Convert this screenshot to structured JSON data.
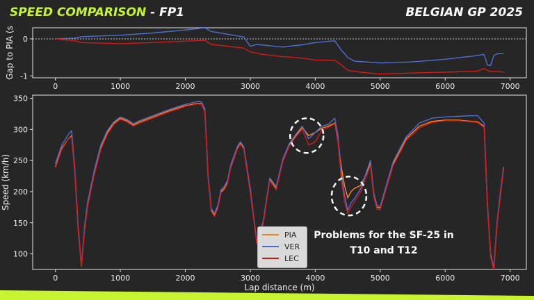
{
  "header": {
    "title_accent": "SPEED COMPARISON",
    "title_rest": " - FP1",
    "event": "BELGIAN GP 2025"
  },
  "annotation": {
    "line1": "Problems for the SF-25 in",
    "line2": "T10 and T12"
  },
  "colors": {
    "background": "#262626",
    "accent": "#c6f432",
    "PIA": "#ff8a1c",
    "VER": "#4f6fd1",
    "LEC": "#d41a1a"
  },
  "chart_data": [
    {
      "type": "line",
      "ylabel": "Gap to PIA (s",
      "xlim": [
        -350,
        7250
      ],
      "ylim": [
        -1.05,
        0.3
      ],
      "xticks": [
        0,
        1000,
        2000,
        3000,
        4000,
        5000,
        6000,
        7000
      ],
      "yticks": [
        0,
        -1
      ],
      "reference_line": 0,
      "series": [
        {
          "name": "VER",
          "x": [
            0,
            300,
            400,
            1000,
            1500,
            2000,
            2300,
            2400,
            2900,
            3000,
            3100,
            3500,
            3800,
            4000,
            4300,
            4400,
            4500,
            4600,
            5000,
            5500,
            6000,
            6400,
            6600,
            6650,
            6700,
            6750,
            6800,
            6900
          ],
          "values": [
            0.0,
            0.02,
            0.06,
            0.1,
            0.16,
            0.24,
            0.3,
            0.2,
            0.05,
            -0.2,
            -0.15,
            -0.22,
            -0.16,
            -0.1,
            -0.05,
            -0.3,
            -0.5,
            -0.6,
            -0.65,
            -0.62,
            -0.55,
            -0.47,
            -0.42,
            -0.7,
            -0.72,
            -0.45,
            -0.4,
            -0.4
          ]
        },
        {
          "name": "LEC",
          "x": [
            0,
            300,
            400,
            1000,
            1500,
            2000,
            2300,
            2400,
            2900,
            3000,
            3200,
            3500,
            3800,
            4000,
            4300,
            4400,
            4500,
            4700,
            5000,
            5500,
            6000,
            6500,
            6600,
            6650,
            6700,
            6800,
            6900
          ],
          "values": [
            0.0,
            -0.05,
            -0.1,
            -0.13,
            -0.1,
            -0.06,
            -0.04,
            -0.15,
            -0.25,
            -0.35,
            -0.42,
            -0.48,
            -0.52,
            -0.57,
            -0.58,
            -0.7,
            -0.85,
            -0.9,
            -0.95,
            -0.92,
            -0.9,
            -0.87,
            -0.8,
            -0.85,
            -0.88,
            -0.88,
            -0.9
          ]
        }
      ]
    },
    {
      "type": "line",
      "xlabel": "Lap distance (m)",
      "ylabel": "Speed (km/h)",
      "xlim": [
        -350,
        7250
      ],
      "ylim": [
        75,
        355
      ],
      "xticks": [
        0,
        1000,
        2000,
        3000,
        4000,
        5000,
        6000,
        7000
      ],
      "yticks": [
        100,
        150,
        200,
        250,
        300,
        350
      ],
      "legend_position": "center",
      "series": [
        {
          "name": "PIA",
          "x": [
            0,
            100,
            200,
            250,
            300,
            350,
            400,
            450,
            500,
            600,
            700,
            800,
            900,
            1000,
            1100,
            1200,
            1300,
            1500,
            1700,
            1900,
            2000,
            2100,
            2200,
            2250,
            2300,
            2350,
            2400,
            2450,
            2500,
            2550,
            2600,
            2650,
            2700,
            2800,
            2850,
            2900,
            3000,
            3050,
            3100,
            3200,
            3300,
            3400,
            3500,
            3600,
            3700,
            3800,
            3900,
            4000,
            4100,
            4200,
            4300,
            4350,
            4400,
            4450,
            4500,
            4550,
            4600,
            4700,
            4800,
            4850,
            4900,
            4950,
            5000,
            5100,
            5200,
            5400,
            5600,
            5800,
            6000,
            6200,
            6400,
            6500,
            6600,
            6650,
            6700,
            6750,
            6800,
            6850,
            6900
          ],
          "values": [
            240,
            270,
            285,
            290,
            230,
            140,
            80,
            140,
            180,
            230,
            270,
            295,
            310,
            318,
            314,
            307,
            312,
            320,
            328,
            335,
            338,
            340,
            342,
            341,
            330,
            225,
            170,
            162,
            175,
            200,
            205,
            215,
            240,
            270,
            278,
            270,
            200,
            160,
            118,
            150,
            220,
            205,
            250,
            275,
            290,
            303,
            290,
            295,
            302,
            305,
            310,
            280,
            240,
            210,
            190,
            200,
            205,
            210,
            232,
            245,
            195,
            175,
            174,
            210,
            245,
            285,
            305,
            313,
            315,
            315,
            313,
            312,
            305,
            180,
            100,
            75,
            150,
            195,
            238
          ]
        },
        {
          "name": "VER",
          "x": [
            0,
            100,
            200,
            250,
            300,
            350,
            400,
            450,
            500,
            600,
            700,
            800,
            900,
            1000,
            1100,
            1200,
            1300,
            1500,
            1700,
            1900,
            2000,
            2100,
            2200,
            2250,
            2300,
            2350,
            2400,
            2450,
            2500,
            2550,
            2600,
            2650,
            2700,
            2800,
            2850,
            2900,
            3000,
            3050,
            3100,
            3200,
            3300,
            3400,
            3500,
            3600,
            3700,
            3800,
            3900,
            4000,
            4100,
            4200,
            4300,
            4350,
            4400,
            4450,
            4500,
            4550,
            4600,
            4700,
            4800,
            4850,
            4900,
            4950,
            5000,
            5100,
            5200,
            5400,
            5600,
            5800,
            6000,
            6200,
            6400,
            6500,
            6600,
            6650,
            6700,
            6750,
            6800,
            6850,
            6900
          ],
          "values": [
            245,
            275,
            292,
            298,
            235,
            145,
            82,
            145,
            185,
            235,
            275,
            298,
            312,
            320,
            316,
            309,
            314,
            322,
            330,
            337,
            340,
            343,
            345,
            344,
            333,
            228,
            173,
            165,
            178,
            203,
            208,
            218,
            243,
            272,
            280,
            272,
            205,
            162,
            120,
            152,
            222,
            208,
            252,
            277,
            292,
            305,
            285,
            295,
            305,
            308,
            318,
            290,
            230,
            195,
            170,
            182,
            188,
            205,
            235,
            250,
            198,
            178,
            176,
            212,
            248,
            288,
            310,
            318,
            320,
            321,
            322,
            322,
            310,
            185,
            95,
            80,
            152,
            198,
            240
          ]
        },
        {
          "name": "LEC",
          "x": [
            0,
            100,
            200,
            250,
            300,
            350,
            400,
            450,
            500,
            600,
            700,
            800,
            900,
            1000,
            1100,
            1200,
            1300,
            1500,
            1700,
            1900,
            2000,
            2100,
            2200,
            2250,
            2300,
            2350,
            2400,
            2450,
            2500,
            2550,
            2600,
            2650,
            2700,
            2800,
            2850,
            2900,
            3000,
            3050,
            3100,
            3200,
            3300,
            3400,
            3500,
            3600,
            3700,
            3800,
            3900,
            4000,
            4100,
            4200,
            4300,
            4350,
            4400,
            4450,
            4500,
            4550,
            4600,
            4700,
            4800,
            4850,
            4900,
            4950,
            5000,
            5100,
            5200,
            5400,
            5600,
            5800,
            6000,
            6200,
            6400,
            6500,
            6600,
            6650,
            6700,
            6750,
            6800,
            6850,
            6900
          ],
          "values": [
            238,
            268,
            285,
            288,
            228,
            138,
            80,
            138,
            178,
            228,
            268,
            292,
            308,
            316,
            312,
            305,
            310,
            318,
            326,
            333,
            337,
            339,
            341,
            340,
            328,
            222,
            168,
            160,
            173,
            198,
            203,
            213,
            238,
            268,
            276,
            268,
            198,
            158,
            116,
            148,
            218,
            203,
            248,
            273,
            288,
            300,
            275,
            280,
            298,
            303,
            309,
            280,
            220,
            185,
            165,
            175,
            183,
            200,
            228,
            242,
            192,
            172,
            171,
            207,
            242,
            282,
            302,
            311,
            314,
            314,
            312,
            311,
            303,
            178,
            96,
            73,
            148,
            192,
            236
          ]
        }
      ]
    }
  ]
}
